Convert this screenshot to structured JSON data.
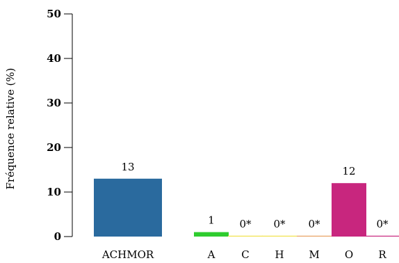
{
  "chart_data": {
    "type": "bar",
    "title": "",
    "xlabel": "",
    "ylabel": "Fréquence relative (%)",
    "ylim": [
      0,
      50
    ],
    "yticks": [
      0,
      10,
      20,
      30,
      40,
      50
    ],
    "grid": false,
    "categories": [
      "ACHMOR",
      "A",
      "C",
      "H",
      "M",
      "O",
      "R"
    ],
    "values": [
      13,
      1,
      0,
      0,
      0,
      12,
      0
    ],
    "data_labels": [
      "13",
      "1",
      "0*",
      "0*",
      "0*",
      "12",
      "0*"
    ],
    "colors": [
      "#2a6a9e",
      "#2ecc2e",
      "#f2e24a",
      "#f2e24a",
      "#e8a060",
      "#c8267e",
      "#c8267e"
    ]
  }
}
